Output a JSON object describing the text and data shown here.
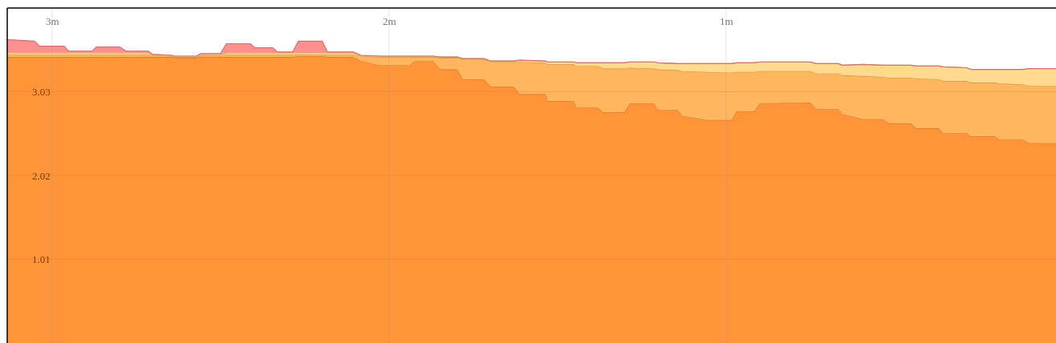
{
  "chart_data": {
    "type": "area",
    "stacked": true,
    "grid": true,
    "x": [
      3.133,
      3.052,
      3.036,
      2.964,
      2.95,
      2.881,
      2.869,
      2.798,
      2.781,
      2.714,
      2.702,
      2.643,
      2.636,
      2.571,
      2.56,
      2.5,
      2.483,
      2.412,
      2.398,
      2.345,
      2.331,
      2.286,
      2.269,
      2.198,
      2.183,
      2.107,
      2.083,
      2.029,
      1.94,
      1.924,
      1.869,
      1.85,
      1.798,
      1.781,
      1.719,
      1.698,
      1.631,
      1.612,
      1.536,
      1.529,
      1.452,
      1.445,
      1.381,
      1.364,
      1.302,
      1.286,
      1.214,
      1.202,
      1.143,
      1.131,
      1.06,
      0.983,
      0.969,
      0.917,
      0.9,
      0.75,
      0.733,
      0.667,
      0.655,
      0.595,
      0.536,
      0.517,
      0.452,
      0.436,
      0.369,
      0.357,
      0.286,
      0.274,
      0.202,
      0.188,
      0.119,
      0.102,
      0.021
    ],
    "series": [
      {
        "color": "#ff9538",
        "values": [
          3.45,
          3.45,
          3.45,
          3.45,
          3.45,
          3.45,
          3.45,
          3.45,
          3.45,
          3.45,
          3.45,
          3.45,
          3.44,
          3.44,
          3.45,
          3.45,
          3.45,
          3.45,
          3.45,
          3.45,
          3.45,
          3.45,
          3.46,
          3.46,
          3.45,
          3.45,
          3.4,
          3.35,
          3.35,
          3.4,
          3.4,
          3.3,
          3.3,
          3.18,
          3.18,
          3.09,
          3.09,
          3.0,
          3.0,
          2.92,
          2.92,
          2.84,
          2.84,
          2.78,
          2.78,
          2.89,
          2.89,
          2.81,
          2.81,
          2.74,
          2.69,
          2.69,
          2.79,
          2.79,
          2.89,
          2.9,
          2.82,
          2.82,
          2.76,
          2.7,
          2.7,
          2.65,
          2.65,
          2.59,
          2.59,
          2.53,
          2.53,
          2.49,
          2.49,
          2.45,
          2.45,
          2.41,
          2.41
        ]
      },
      {
        "color": "#ffb65c",
        "values": [
          0.03,
          0.03,
          0.03,
          0.03,
          0.03,
          0.03,
          0.03,
          0.03,
          0.03,
          0.03,
          0.02,
          0.01,
          0.01,
          0.01,
          0.02,
          0.02,
          0.03,
          0.03,
          0.03,
          0.03,
          0.03,
          0.03,
          0.02,
          0.02,
          0.03,
          0.03,
          0.06,
          0.1,
          0.1,
          0.05,
          0.05,
          0.14,
          0.14,
          0.24,
          0.24,
          0.3,
          0.3,
          0.39,
          0.38,
          0.44,
          0.44,
          0.5,
          0.5,
          0.53,
          0.53,
          0.43,
          0.42,
          0.49,
          0.48,
          0.54,
          0.58,
          0.57,
          0.48,
          0.48,
          0.39,
          0.38,
          0.43,
          0.43,
          0.47,
          0.52,
          0.51,
          0.55,
          0.55,
          0.6,
          0.59,
          0.63,
          0.63,
          0.65,
          0.65,
          0.68,
          0.67,
          0.69,
          0.69
        ]
      },
      {
        "color": "#ffd98e",
        "values": [
          0.02,
          0.02,
          0.02,
          0.02,
          0.02,
          0.02,
          0.02,
          0.02,
          0.02,
          0.02,
          0.01,
          0.01,
          0.01,
          0.01,
          0.01,
          0.01,
          0.02,
          0.02,
          0.02,
          0.02,
          0.02,
          0.02,
          0.02,
          0.02,
          0.02,
          0.02,
          0.01,
          0.01,
          0.01,
          0.01,
          0.01,
          0.01,
          0.01,
          0.01,
          0.01,
          0.01,
          0.01,
          0.02,
          0.02,
          0.03,
          0.03,
          0.04,
          0.04,
          0.07,
          0.07,
          0.07,
          0.08,
          0.08,
          0.08,
          0.09,
          0.1,
          0.11,
          0.11,
          0.11,
          0.11,
          0.11,
          0.12,
          0.12,
          0.12,
          0.14,
          0.14,
          0.15,
          0.15,
          0.15,
          0.16,
          0.17,
          0.16,
          0.16,
          0.16,
          0.17,
          0.18,
          0.21,
          0.21
        ]
      },
      {
        "color": "#ff9090",
        "values": [
          0.16,
          0.14,
          0.08,
          0.08,
          0.02,
          0.02,
          0.07,
          0.07,
          0.02,
          0.02,
          0,
          0,
          0,
          0,
          0.01,
          0.01,
          0.11,
          0.11,
          0.06,
          0.06,
          0.01,
          0.01,
          0.14,
          0.14,
          0.01,
          0.01,
          0,
          0,
          0,
          0,
          0,
          0,
          0,
          0,
          0,
          0,
          0,
          0,
          0,
          0,
          0,
          0,
          0,
          0,
          0,
          0,
          0,
          0,
          0,
          0,
          0,
          0,
          0,
          0,
          0,
          0,
          0,
          0,
          0,
          0,
          0,
          0,
          0,
          0,
          0,
          0,
          0,
          0,
          0,
          0,
          0,
          0,
          0
        ]
      }
    ],
    "xlim": [
      3.133,
      0.021
    ],
    "xticks": [
      {
        "value": 3,
        "label": "3m"
      },
      {
        "value": 2,
        "label": "2m"
      },
      {
        "value": 1,
        "label": "1m"
      }
    ],
    "ylim": [
      0,
      4.04
    ],
    "yticks": [
      {
        "value": 1.01,
        "label": "1.01"
      },
      {
        "value": 2.02,
        "label": "2.02"
      },
      {
        "value": 3.03,
        "label": "3.03"
      }
    ]
  }
}
